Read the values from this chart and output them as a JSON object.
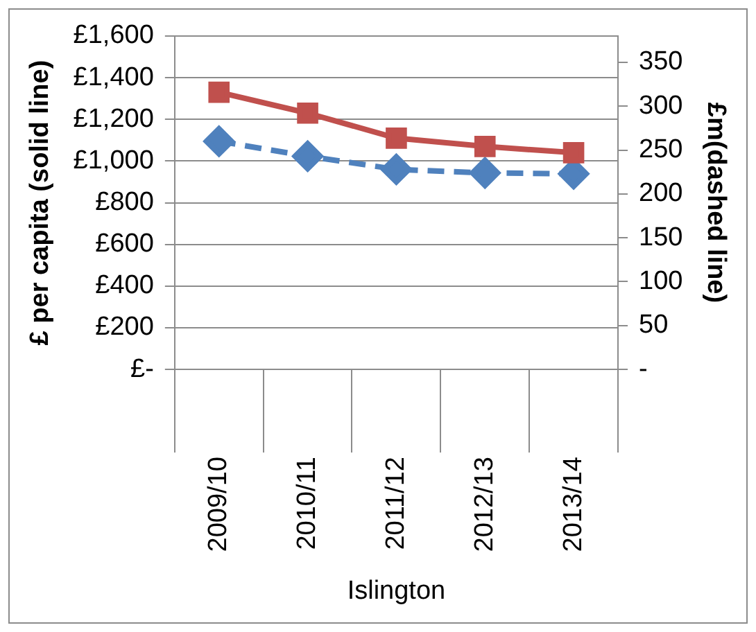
{
  "chart_data": {
    "type": "line",
    "xlabel": "Islington",
    "ylabel": "£ per capita (solid line)",
    "y2label": "£m(dashed line)",
    "categories": [
      "2009/10",
      "2010/11",
      "2011/12",
      "2012/13",
      "2013/14"
    ],
    "series": [
      {
        "color": "#c0504d",
        "values": [
          1330,
          1230,
          1110,
          1070,
          1040
        ],
        "marker": "square",
        "line_style": "solid"
      },
      {
        "color": "#4f81bd",
        "values": [
          260,
          243,
          228,
          224,
          223
        ],
        "axis": "y2",
        "marker": "diamond",
        "line_style": "dashed"
      }
    ],
    "ylim": [
      0,
      1600
    ],
    "yticks": [
      {
        "value": 0,
        "label": "£-"
      },
      {
        "value": 200,
        "label": "£200"
      },
      {
        "value": 400,
        "label": "£400"
      },
      {
        "value": 600,
        "label": "£600"
      },
      {
        "value": 800,
        "label": "£800"
      },
      {
        "value": 1000,
        "label": "£1,000"
      },
      {
        "value": 1200,
        "label": "£1,200"
      },
      {
        "value": 1400,
        "label": "£1,400"
      },
      {
        "value": 1600,
        "label": "£1,600"
      }
    ],
    "y2lim": [
      0,
      380
    ],
    "y2ticks": [
      {
        "value": 0,
        "label": "-"
      },
      50,
      100,
      150,
      200,
      250,
      300,
      350
    ],
    "grid": "y",
    "legend": false
  }
}
